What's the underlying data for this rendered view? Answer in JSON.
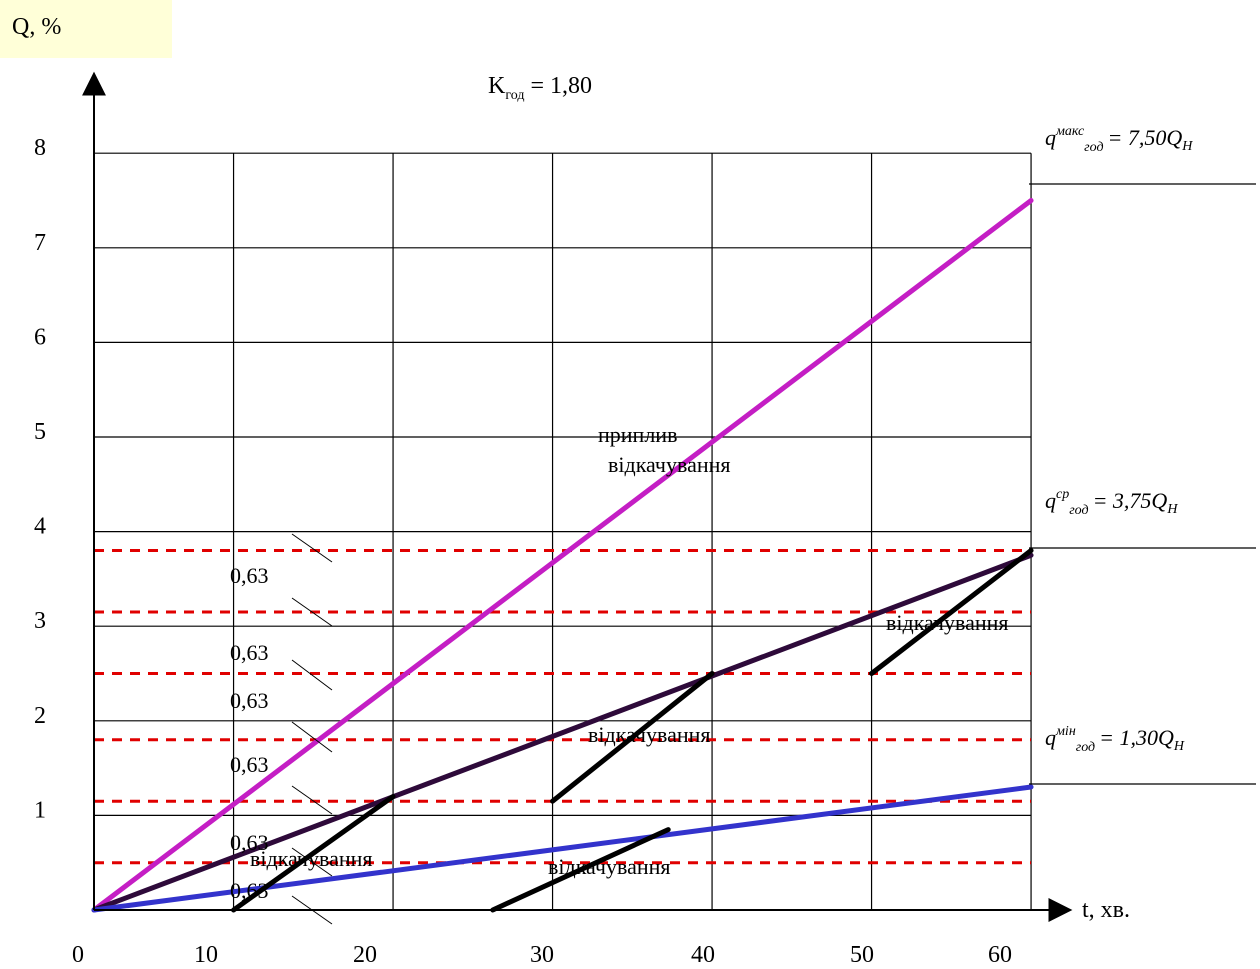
{
  "chart_data": {
    "type": "line",
    "title": "Kгод = 1,80",
    "title_main": "K",
    "title_sub": "год",
    "title_value": "= 1,80",
    "xlabel": "t, хв.",
    "ylabel": "Q, %",
    "xlim": [
      0,
      62
    ],
    "ylim": [
      0,
      8
    ],
    "x_ticks": [
      "0",
      "10",
      "20",
      "30",
      "40",
      "50",
      "60"
    ],
    "y_ticks": [
      "1",
      "2",
      "3",
      "4",
      "5",
      "6",
      "7",
      "8"
    ],
    "grid": true,
    "grid_x_lines": [
      0,
      8.75,
      18.75,
      28.75,
      38.75,
      48.75,
      58.75
    ],
    "grid_y_lines": [
      1,
      2,
      3,
      4,
      5,
      6,
      7,
      8
    ],
    "reference_levels": [
      0.5,
      1.15,
      1.8,
      2.5,
      3.15,
      3.8
    ],
    "series": [
      {
        "name": "приплив",
        "color": "#c41ec4",
        "x": [
          0,
          58.75
        ],
        "y": [
          0,
          7.5
        ]
      },
      {
        "name": "відкачування",
        "color": "#2e0a3a",
        "x": [
          0,
          58.75
        ],
        "y": [
          0,
          3.75
        ]
      },
      {
        "name": "",
        "color": "#3333cc",
        "x": [
          0,
          58.75
        ],
        "y": [
          0,
          1.3
        ]
      }
    ],
    "segments": [
      {
        "color": "#000000",
        "x": [
          8.75,
          18.75
        ],
        "y": [
          0,
          1.2
        ]
      },
      {
        "color": "#000000",
        "x": [
          25,
          36
        ],
        "y": [
          0,
          0.85
        ]
      },
      {
        "color": "#000000",
        "x": [
          28.75,
          38.75
        ],
        "y": [
          1.15,
          2.5
        ]
      },
      {
        "color": "#000000",
        "x": [
          48.75,
          58.75
        ],
        "y": [
          2.5,
          3.8
        ]
      }
    ],
    "step_labels": [
      "0,63",
      "0,63",
      "0,63",
      "0,63",
      "0,63",
      "0,63"
    ],
    "annotations": [
      "приплив",
      "відкачування",
      "відкачування",
      "відкачування",
      "відкачування",
      "відкачування"
    ],
    "formulas": [
      {
        "base": "q",
        "sup": "макс",
        "sub": "год",
        "value": "= 7,50Q",
        "unit_sub": "Н",
        "y": 7.5
      },
      {
        "base": "q",
        "sup": "ср",
        "sub": "год",
        "value": "= 3,75Q",
        "unit_sub": "Н",
        "y": 3.8
      },
      {
        "base": "q",
        "sup": "мін",
        "sub": "год",
        "value": "= 1,30Q",
        "unit_sub": "Н",
        "y": 1.3
      }
    ],
    "ylabel_bg": "#ffffd8",
    "ref_color": "#e00000"
  }
}
